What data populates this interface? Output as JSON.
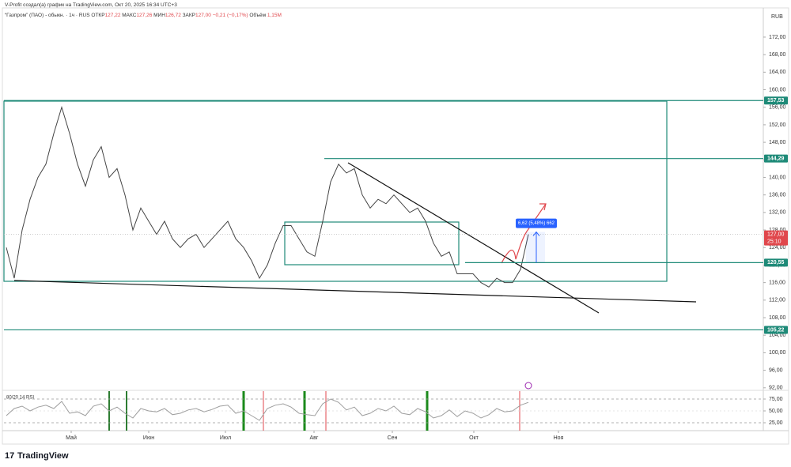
{
  "header": {
    "author_line": "V-Profit создал(а) график на TradingView.com, Окт 20, 2025 16:34 UTC+3",
    "symbol": "“Газпром” (ПАО) - обыкн. · 1ч · RUS",
    "ohlc": [
      {
        "label": "ОТКР",
        "value": "127,22"
      },
      {
        "label": "МАКС",
        "value": "127,26"
      },
      {
        "label": "МИН",
        "value": "126,72"
      },
      {
        "label": "ЗАКР",
        "value": "127,00"
      }
    ],
    "change": "−0,21 (−0,17%)",
    "volume_label": "Объём",
    "volume": "1,15M"
  },
  "currency": "RUB",
  "footer": {
    "brand": "TradingView"
  },
  "chart_data": [
    {
      "type": "line",
      "color": "#444444",
      "x": [
        0,
        1,
        2,
        3,
        4,
        5,
        6,
        7,
        8,
        9,
        10,
        11,
        12,
        13,
        14,
        15,
        16,
        17,
        18,
        19,
        20,
        21,
        22,
        23,
        24,
        25,
        26,
        27,
        28,
        29,
        30,
        31,
        32,
        33,
        34,
        35,
        36,
        37,
        38,
        39,
        40,
        41,
        42,
        43,
        44,
        45,
        46,
        47,
        48,
        49,
        50,
        51,
        52,
        53,
        54,
        55,
        56,
        57,
        58,
        59,
        60,
        61,
        62,
        63,
        64,
        65,
        66
      ],
      "values": [
        124,
        117,
        128,
        135,
        140,
        143,
        150,
        156,
        150,
        143,
        138,
        144,
        147,
        140,
        142,
        136,
        128,
        133,
        130,
        127,
        130,
        126,
        124,
        126,
        127,
        124,
        126,
        128,
        130,
        126,
        124,
        121,
        117,
        120,
        125,
        129,
        129,
        126,
        123,
        122,
        130,
        139,
        143,
        141,
        142,
        136,
        133,
        135,
        134,
        136,
        134,
        132,
        133,
        130,
        125,
        122,
        123,
        118,
        118,
        118,
        116,
        115,
        117,
        116,
        116,
        119,
        127
      ],
      "xlim": [
        -0.3,
        95.7
      ],
      "ylim": [
        91.6,
        178.3
      ],
      "yticks": [
        {
          "value": 172,
          "label": "172,00"
        },
        {
          "value": 168,
          "label": "168,00"
        },
        {
          "value": 164,
          "label": "164,00"
        },
        {
          "value": 160,
          "label": "160,00"
        },
        {
          "value": 156,
          "label": "156,00"
        },
        {
          "value": 152,
          "label": "152,00"
        },
        {
          "value": 148,
          "label": "148,00"
        },
        {
          "value": 144,
          "label": "144,00"
        },
        {
          "value": 140,
          "label": "140,00"
        },
        {
          "value": 136,
          "label": "136,00"
        },
        {
          "value": 132,
          "label": "132,00"
        },
        {
          "value": 128,
          "label": "128,00"
        },
        {
          "value": 124,
          "label": "124,00"
        },
        {
          "value": 120,
          "label": "120,00"
        },
        {
          "value": 116,
          "label": "116,00"
        },
        {
          "value": 112,
          "label": "112,00"
        },
        {
          "value": 108,
          "label": "108,00"
        },
        {
          "value": 104,
          "label": "104,00"
        },
        {
          "value": 100,
          "label": "100,00"
        },
        {
          "value": 96,
          "label": "96,00"
        },
        {
          "value": 92,
          "label": "92,00"
        }
      ],
      "levels": [
        {
          "value": 157.53,
          "label": "157,53"
        },
        {
          "value": 144.29,
          "label": "144,29"
        },
        {
          "value": 120.55,
          "label": "120,55"
        },
        {
          "value": 105.22,
          "label": "105,22"
        }
      ],
      "last_price": {
        "value": 127,
        "label": "127,00"
      },
      "countdown": "25:10",
      "measure": "6,62 (5,48%) 662"
    },
    {
      "type": "line",
      "title": "80/20 14 RSI",
      "color": "#9e9e9e",
      "x": [
        0,
        1,
        2,
        3,
        4,
        5,
        6,
        7,
        8,
        9,
        10,
        11,
        12,
        13,
        14,
        15,
        16,
        17,
        18,
        19,
        20,
        21,
        22,
        23,
        24,
        25,
        26,
        27,
        28,
        29,
        30,
        31,
        32,
        33,
        34,
        35,
        36,
        37,
        38,
        39,
        40,
        41,
        42,
        43,
        44,
        45,
        46,
        47,
        48,
        49,
        50,
        51,
        52,
        53,
        54,
        55,
        56,
        57,
        58,
        59,
        60,
        61,
        62,
        63,
        64,
        65,
        66
      ],
      "values": [
        40,
        55,
        60,
        50,
        58,
        62,
        55,
        70,
        45,
        48,
        40,
        60,
        65,
        50,
        58,
        45,
        35,
        55,
        50,
        48,
        55,
        42,
        45,
        52,
        55,
        48,
        53,
        60,
        62,
        45,
        50,
        40,
        30,
        55,
        62,
        65,
        58,
        45,
        42,
        40,
        65,
        75,
        68,
        52,
        58,
        40,
        45,
        55,
        50,
        60,
        45,
        42,
        55,
        48,
        35,
        40,
        52,
        38,
        50,
        45,
        35,
        42,
        55,
        48,
        50,
        62,
        68
      ],
      "xlim": [
        -0.3,
        95.7
      ],
      "ylim": [
        8.3,
        91.7
      ],
      "yticks": [
        {
          "value": 75,
          "label": "75,00"
        },
        {
          "value": 50,
          "label": "50,00"
        },
        {
          "value": 25,
          "label": "25,00"
        }
      ],
      "xticks": [
        {
          "value": 8.2,
          "label": "Май"
        },
        {
          "value": 18,
          "label": "Июн"
        },
        {
          "value": 27.7,
          "label": "Июл"
        },
        {
          "value": 38.9,
          "label": "Авг"
        },
        {
          "value": 48.8,
          "label": "Сен"
        },
        {
          "value": 59.1,
          "label": "Окт"
        },
        {
          "value": 69.8,
          "label": "Ноя"
        }
      ]
    }
  ]
}
